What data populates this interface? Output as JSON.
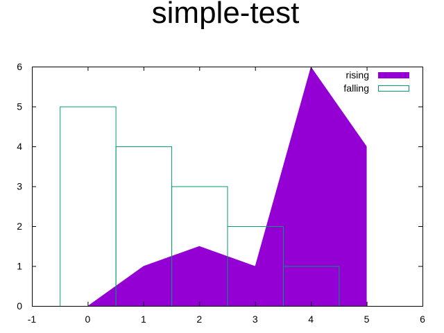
{
  "chart_data": {
    "type": "area",
    "title": "simple-test",
    "xlabel": "",
    "ylabel": "",
    "xlim": [
      -1,
      6
    ],
    "ylim": [
      0,
      6
    ],
    "xticks": [
      -1,
      0,
      1,
      2,
      3,
      4,
      5,
      6
    ],
    "yticks": [
      0,
      1,
      2,
      3,
      4,
      5,
      6
    ],
    "grid": false,
    "legend_position": "top-right",
    "series": [
      {
        "name": "rising",
        "style": "filled-curve",
        "color": "#9400d3",
        "x": [
          0,
          1,
          2,
          3,
          4,
          5
        ],
        "y": [
          0,
          1,
          1.5,
          1,
          6,
          4
        ]
      },
      {
        "name": "falling",
        "style": "boxes",
        "color": "#009e73",
        "box_width": 1,
        "x": [
          0,
          1,
          2,
          3,
          4
        ],
        "y": [
          5,
          4,
          3,
          2,
          1
        ]
      }
    ]
  }
}
